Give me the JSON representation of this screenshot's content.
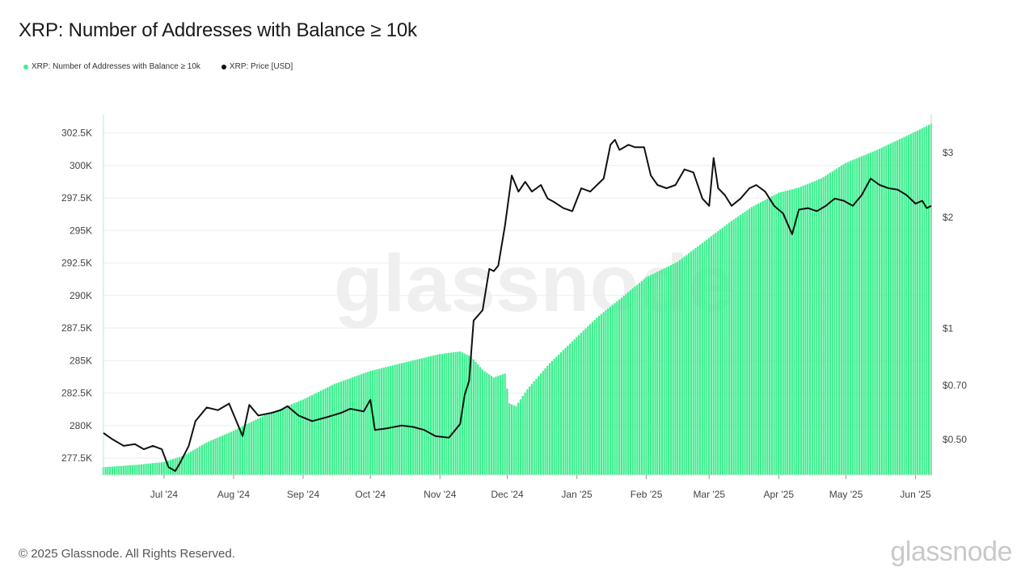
{
  "header": {
    "title": "XRP: Number of Addresses with Balance ≥ 10k"
  },
  "legend": [
    {
      "label": "XRP: Number of Addresses with Balance ≥ 10k",
      "color": "#3dee8f"
    },
    {
      "label": "XRP: Price [USD]",
      "color": "#111111"
    }
  ],
  "footer": {
    "copyright": "© 2025 Glassnode. All Rights Reserved.",
    "brand": "glassnode"
  },
  "watermark": "glassnode",
  "chart_data": {
    "type": "bar",
    "colors": {
      "addresses": "#3dee8f",
      "price": "#111111"
    },
    "grid": true,
    "y_left": {
      "ticks": [
        277500,
        280000,
        282500,
        285000,
        287500,
        290000,
        292500,
        295000,
        297500,
        300000,
        302500
      ],
      "tick_labels": [
        "277.5K",
        "280K",
        "282.5K",
        "285K",
        "287.5K",
        "290K",
        "292.5K",
        "295K",
        "297.5K",
        "300K",
        "302.5K"
      ],
      "range": [
        276200,
        303900
      ]
    },
    "y_right": {
      "scale": "log",
      "ticks": [
        0.5,
        0.7,
        1,
        2,
        3
      ],
      "tick_labels": [
        "$0.50",
        "$0.70",
        "$1",
        "$2",
        "$3"
      ],
      "range": [
        0.4,
        3.8
      ]
    },
    "x_ticks": [
      {
        "date": "2024-07-01",
        "label": "Jul '24"
      },
      {
        "date": "2024-08-01",
        "label": "Aug '24"
      },
      {
        "date": "2024-09-01",
        "label": "Sep '24"
      },
      {
        "date": "2024-10-01",
        "label": "Oct '24"
      },
      {
        "date": "2024-11-01",
        "label": "Nov '24"
      },
      {
        "date": "2024-12-01",
        "label": "Dec '24"
      },
      {
        "date": "2025-01-01",
        "label": "Jan '25"
      },
      {
        "date": "2025-02-01",
        "label": "Feb '25"
      },
      {
        "date": "2025-03-01",
        "label": "Mar '25"
      },
      {
        "date": "2025-04-01",
        "label": "Apr '25"
      },
      {
        "date": "2025-05-01",
        "label": "May '25"
      },
      {
        "date": "2025-06-01",
        "label": "Jun '25"
      }
    ],
    "x_range": [
      "2024-06-04",
      "2025-06-08"
    ],
    "series": [
      {
        "name": "XRP: Number of Addresses with Balance ≥ 10k",
        "axis": "left",
        "kind": "bar",
        "points": [
          [
            "2024-06-04",
            276800
          ],
          [
            "2024-06-20",
            277000
          ],
          [
            "2024-07-01",
            277200
          ],
          [
            "2024-07-10",
            277700
          ],
          [
            "2024-07-20",
            278700
          ],
          [
            "2024-08-01",
            279600
          ],
          [
            "2024-08-15",
            280800
          ],
          [
            "2024-09-01",
            282000
          ],
          [
            "2024-09-15",
            283200
          ],
          [
            "2024-10-01",
            284200
          ],
          [
            "2024-10-15",
            284800
          ],
          [
            "2024-11-01",
            285500
          ],
          [
            "2024-11-10",
            285700
          ],
          [
            "2024-11-15",
            285300
          ],
          [
            "2024-11-20",
            284300
          ],
          [
            "2024-11-25",
            283700
          ],
          [
            "2024-11-30",
            284000
          ],
          [
            "2024-12-02",
            281700
          ],
          [
            "2024-12-05",
            281500
          ],
          [
            "2024-12-10",
            282800
          ],
          [
            "2024-12-20",
            284800
          ],
          [
            "2025-01-01",
            286800
          ],
          [
            "2025-01-10",
            288300
          ],
          [
            "2025-01-20",
            289700
          ],
          [
            "2025-02-01",
            291400
          ],
          [
            "2025-02-15",
            292600
          ],
          [
            "2025-02-28",
            294300
          ],
          [
            "2025-03-10",
            295600
          ],
          [
            "2025-03-20",
            296800
          ],
          [
            "2025-04-01",
            297900
          ],
          [
            "2025-04-10",
            298300
          ],
          [
            "2025-04-20",
            299000
          ],
          [
            "2025-05-01",
            300200
          ],
          [
            "2025-05-15",
            301200
          ],
          [
            "2025-06-01",
            302600
          ],
          [
            "2025-06-08",
            303200
          ]
        ]
      },
      {
        "name": "XRP: Price [USD]",
        "axis": "right",
        "kind": "line",
        "points": [
          [
            "2024-06-04",
            0.52
          ],
          [
            "2024-06-08",
            0.5
          ],
          [
            "2024-06-13",
            0.48
          ],
          [
            "2024-06-18",
            0.485
          ],
          [
            "2024-06-22",
            0.47
          ],
          [
            "2024-06-26",
            0.48
          ],
          [
            "2024-06-30",
            0.47
          ],
          [
            "2024-07-03",
            0.42
          ],
          [
            "2024-07-06",
            0.41
          ],
          [
            "2024-07-08",
            0.43
          ],
          [
            "2024-07-12",
            0.48
          ],
          [
            "2024-07-15",
            0.56
          ],
          [
            "2024-07-20",
            0.61
          ],
          [
            "2024-07-25",
            0.6
          ],
          [
            "2024-07-30",
            0.625
          ],
          [
            "2024-08-05",
            0.51
          ],
          [
            "2024-08-08",
            0.62
          ],
          [
            "2024-08-12",
            0.58
          ],
          [
            "2024-08-18",
            0.59
          ],
          [
            "2024-08-22",
            0.6
          ],
          [
            "2024-08-25",
            0.615
          ],
          [
            "2024-08-30",
            0.58
          ],
          [
            "2024-09-05",
            0.56
          ],
          [
            "2024-09-12",
            0.575
          ],
          [
            "2024-09-18",
            0.59
          ],
          [
            "2024-09-22",
            0.605
          ],
          [
            "2024-09-28",
            0.595
          ],
          [
            "2024-10-01",
            0.64
          ],
          [
            "2024-10-03",
            0.53
          ],
          [
            "2024-10-08",
            0.535
          ],
          [
            "2024-10-15",
            0.545
          ],
          [
            "2024-10-20",
            0.54
          ],
          [
            "2024-10-25",
            0.53
          ],
          [
            "2024-10-30",
            0.51
          ],
          [
            "2024-11-05",
            0.505
          ],
          [
            "2024-11-10",
            0.55
          ],
          [
            "2024-11-12",
            0.66
          ],
          [
            "2024-11-14",
            0.72
          ],
          [
            "2024-11-16",
            1.05
          ],
          [
            "2024-11-20",
            1.12
          ],
          [
            "2024-11-23",
            1.45
          ],
          [
            "2024-11-25",
            1.43
          ],
          [
            "2024-11-27",
            1.48
          ],
          [
            "2024-11-30",
            1.9
          ],
          [
            "2024-12-03",
            2.6
          ],
          [
            "2024-12-06",
            2.35
          ],
          [
            "2024-12-09",
            2.5
          ],
          [
            "2024-12-12",
            2.35
          ],
          [
            "2024-12-16",
            2.45
          ],
          [
            "2024-12-19",
            2.25
          ],
          [
            "2024-12-22",
            2.2
          ],
          [
            "2024-12-26",
            2.12
          ],
          [
            "2024-12-30",
            2.08
          ],
          [
            "2025-01-03",
            2.4
          ],
          [
            "2025-01-07",
            2.35
          ],
          [
            "2025-01-10",
            2.45
          ],
          [
            "2025-01-13",
            2.55
          ],
          [
            "2025-01-16",
            3.15
          ],
          [
            "2025-01-18",
            3.25
          ],
          [
            "2025-01-20",
            3.05
          ],
          [
            "2025-01-24",
            3.15
          ],
          [
            "2025-01-27",
            3.1
          ],
          [
            "2025-01-31",
            3.1
          ],
          [
            "2025-02-03",
            2.6
          ],
          [
            "2025-02-06",
            2.45
          ],
          [
            "2025-02-10",
            2.4
          ],
          [
            "2025-02-14",
            2.45
          ],
          [
            "2025-02-18",
            2.7
          ],
          [
            "2025-02-22",
            2.65
          ],
          [
            "2025-02-26",
            2.25
          ],
          [
            "2025-03-01",
            2.15
          ],
          [
            "2025-03-03",
            2.9
          ],
          [
            "2025-03-05",
            2.4
          ],
          [
            "2025-03-08",
            2.3
          ],
          [
            "2025-03-11",
            2.15
          ],
          [
            "2025-03-15",
            2.25
          ],
          [
            "2025-03-19",
            2.4
          ],
          [
            "2025-03-22",
            2.45
          ],
          [
            "2025-03-26",
            2.35
          ],
          [
            "2025-03-30",
            2.15
          ],
          [
            "2025-04-03",
            2.05
          ],
          [
            "2025-04-07",
            1.8
          ],
          [
            "2025-04-10",
            2.1
          ],
          [
            "2025-04-14",
            2.12
          ],
          [
            "2025-04-18",
            2.08
          ],
          [
            "2025-04-22",
            2.15
          ],
          [
            "2025-04-26",
            2.25
          ],
          [
            "2025-04-30",
            2.22
          ],
          [
            "2025-05-04",
            2.15
          ],
          [
            "2025-05-08",
            2.3
          ],
          [
            "2025-05-12",
            2.55
          ],
          [
            "2025-05-16",
            2.45
          ],
          [
            "2025-05-20",
            2.4
          ],
          [
            "2025-05-24",
            2.38
          ],
          [
            "2025-05-28",
            2.3
          ],
          [
            "2025-06-01",
            2.18
          ],
          [
            "2025-06-04",
            2.22
          ],
          [
            "2025-06-06",
            2.12
          ],
          [
            "2025-06-08",
            2.15
          ]
        ]
      }
    ]
  }
}
